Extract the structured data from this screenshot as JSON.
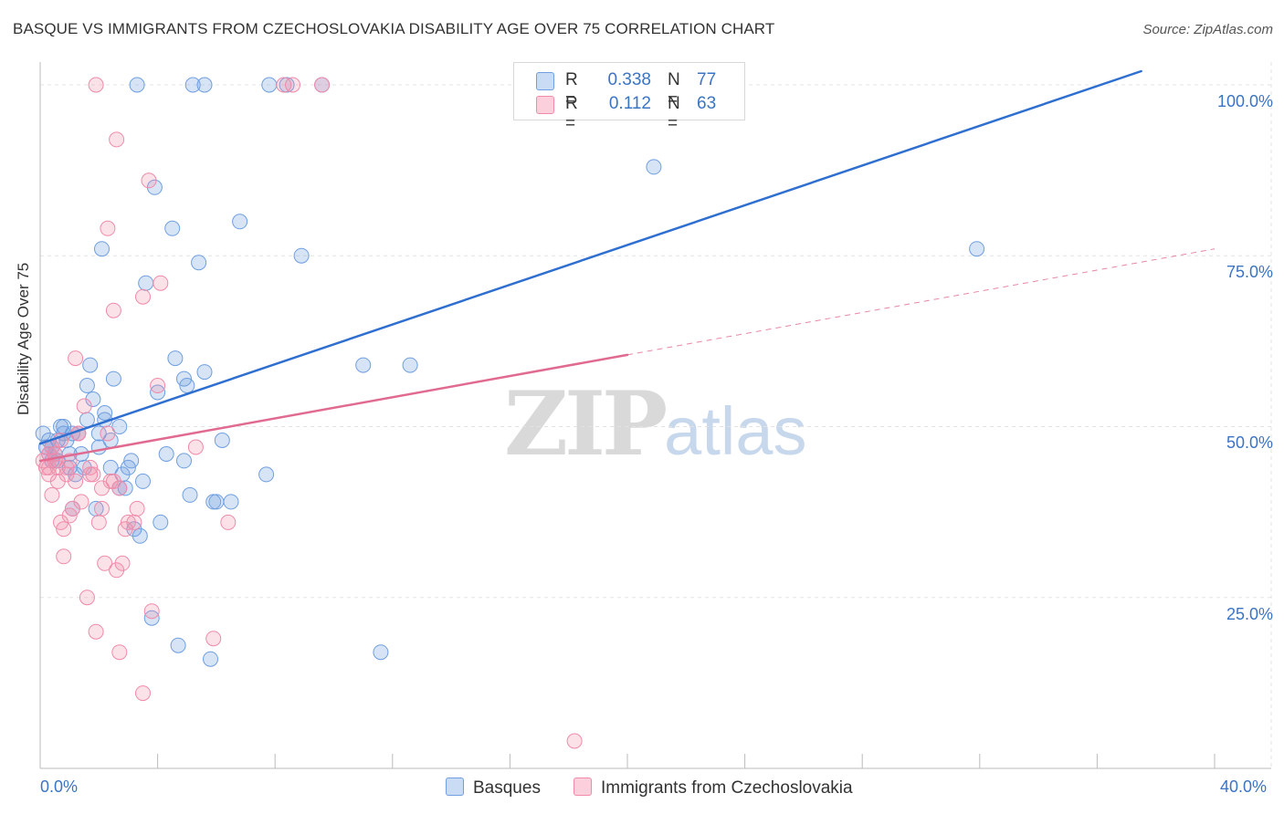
{
  "chart_data": {
    "type": "scatter",
    "title": "BASQUE VS IMMIGRANTS FROM CZECHOSLOVAKIA DISABILITY AGE OVER 75 CORRELATION CHART",
    "source": "Source: ZipAtlas.com",
    "xlabel": "",
    "ylabel": "Disability Age Over 75",
    "xlim": [
      0,
      40
    ],
    "ylim": [
      0,
      102
    ],
    "x_tick_labels": {
      "left": "0.0%",
      "right": "40.0%"
    },
    "y_ticks": [
      {
        "value": 100,
        "label": "100.0%"
      },
      {
        "value": 75,
        "label": "75.0%"
      },
      {
        "value": 50,
        "label": "50.0%"
      },
      {
        "value": 25,
        "label": "25.0%"
      }
    ],
    "grid": true,
    "watermark": {
      "zip": "ZIP",
      "atlas": "atlas"
    },
    "legend": [
      {
        "name": "Basques",
        "r_label": "R =",
        "r": "0.338",
        "n_label": "N =",
        "n": "77",
        "color": "#6f9fe0"
      },
      {
        "name": "Immigrants from Czechoslovakia",
        "r_label": "R =",
        "r": "0.112",
        "n_label": "N =",
        "n": "63",
        "color": "#f08aa8"
      }
    ],
    "series": [
      {
        "name": "Basques",
        "color": "#6f9fe0",
        "trend": {
          "x0": 0,
          "y0": 47.5,
          "x1": 37.5,
          "y1": 102,
          "dashed_to": null,
          "line_color": "#2f6fcf"
        },
        "points": [
          [
            0.1,
            49
          ],
          [
            0.2,
            47
          ],
          [
            0.3,
            48
          ],
          [
            0.3,
            46
          ],
          [
            0.4,
            47
          ],
          [
            0.5,
            46
          ],
          [
            0.6,
            48
          ],
          [
            0.6,
            45
          ],
          [
            0.7,
            50
          ],
          [
            0.8,
            49
          ],
          [
            0.9,
            48
          ],
          [
            1.0,
            46
          ],
          [
            1.0,
            44
          ],
          [
            1.1,
            49
          ],
          [
            1.2,
            43
          ],
          [
            1.3,
            49
          ],
          [
            1.4,
            46
          ],
          [
            1.5,
            44
          ],
          [
            1.6,
            51
          ],
          [
            1.6,
            56
          ],
          [
            1.7,
            59
          ],
          [
            1.8,
            54
          ],
          [
            1.9,
            38
          ],
          [
            2.0,
            47
          ],
          [
            2.0,
            49
          ],
          [
            2.2,
            52
          ],
          [
            2.2,
            51
          ],
          [
            2.4,
            44
          ],
          [
            2.4,
            48
          ],
          [
            2.5,
            57
          ],
          [
            2.7,
            41
          ],
          [
            2.7,
            50
          ],
          [
            2.8,
            43
          ],
          [
            2.9,
            41
          ],
          [
            3.0,
            44
          ],
          [
            3.1,
            45
          ],
          [
            3.2,
            35
          ],
          [
            3.3,
            100
          ],
          [
            3.4,
            34
          ],
          [
            3.5,
            42
          ],
          [
            3.6,
            71
          ],
          [
            3.8,
            22
          ],
          [
            3.9,
            85
          ],
          [
            4.0,
            55
          ],
          [
            4.1,
            36
          ],
          [
            4.3,
            46
          ],
          [
            4.5,
            79
          ],
          [
            4.6,
            60
          ],
          [
            4.7,
            18
          ],
          [
            4.9,
            57
          ],
          [
            4.9,
            45
          ],
          [
            5.0,
            56
          ],
          [
            5.1,
            40
          ],
          [
            5.2,
            100
          ],
          [
            5.4,
            74
          ],
          [
            5.6,
            58
          ],
          [
            5.6,
            100
          ],
          [
            5.8,
            16
          ],
          [
            5.9,
            39
          ],
          [
            6.0,
            39
          ],
          [
            6.2,
            48
          ],
          [
            6.5,
            39
          ],
          [
            6.8,
            80
          ],
          [
            7.7,
            43
          ],
          [
            7.8,
            100
          ],
          [
            8.4,
            100
          ],
          [
            8.9,
            75
          ],
          [
            9.6,
            100
          ],
          [
            11.0,
            59
          ],
          [
            11.6,
            17
          ],
          [
            12.6,
            59
          ],
          [
            20.9,
            88
          ],
          [
            31.9,
            76
          ],
          [
            0.4,
            45
          ],
          [
            1.1,
            38
          ],
          [
            2.1,
            76
          ],
          [
            0.8,
            50
          ]
        ]
      },
      {
        "name": "Immigrants from Czechoslovakia",
        "color": "#f08aa8",
        "trend": {
          "x0": 0,
          "y0": 45,
          "x1": 20,
          "y1": 60.5,
          "dashed_to": {
            "x": 40,
            "y": 76
          },
          "line_color": "#e06a90"
        },
        "points": [
          [
            0.1,
            45
          ],
          [
            0.2,
            44
          ],
          [
            0.3,
            46
          ],
          [
            0.3,
            43
          ],
          [
            0.4,
            40
          ],
          [
            0.5,
            45
          ],
          [
            0.6,
            44
          ],
          [
            0.6,
            42
          ],
          [
            0.7,
            48
          ],
          [
            0.7,
            36
          ],
          [
            0.8,
            31
          ],
          [
            0.8,
            35
          ],
          [
            0.9,
            43
          ],
          [
            1.0,
            37
          ],
          [
            1.1,
            38
          ],
          [
            1.2,
            60
          ],
          [
            1.2,
            42
          ],
          [
            1.3,
            49
          ],
          [
            1.4,
            39
          ],
          [
            1.5,
            53
          ],
          [
            1.6,
            25
          ],
          [
            1.7,
            44
          ],
          [
            1.8,
            43
          ],
          [
            1.9,
            100
          ],
          [
            1.9,
            20
          ],
          [
            2.0,
            36
          ],
          [
            2.1,
            38
          ],
          [
            2.2,
            30
          ],
          [
            2.3,
            49
          ],
          [
            2.3,
            79
          ],
          [
            2.4,
            42
          ],
          [
            2.5,
            67
          ],
          [
            2.6,
            92
          ],
          [
            2.6,
            29
          ],
          [
            2.7,
            41
          ],
          [
            2.7,
            17
          ],
          [
            2.8,
            30
          ],
          [
            2.9,
            35
          ],
          [
            3.0,
            36
          ],
          [
            3.2,
            36
          ],
          [
            3.3,
            38
          ],
          [
            3.5,
            69
          ],
          [
            3.5,
            11
          ],
          [
            3.7,
            86
          ],
          [
            3.8,
            23
          ],
          [
            4.0,
            56
          ],
          [
            4.1,
            71
          ],
          [
            5.3,
            47
          ],
          [
            5.9,
            19
          ],
          [
            6.4,
            36
          ],
          [
            8.3,
            100
          ],
          [
            8.6,
            100
          ],
          [
            9.6,
            100
          ],
          [
            18.2,
            4
          ],
          [
            0.3,
            44
          ],
          [
            0.5,
            46
          ],
          [
            0.9,
            44
          ],
          [
            1.3,
            49
          ],
          [
            1.7,
            43
          ],
          [
            2.1,
            41
          ],
          [
            2.5,
            42
          ],
          [
            1.0,
            45
          ],
          [
            0.4,
            47
          ]
        ]
      }
    ]
  }
}
